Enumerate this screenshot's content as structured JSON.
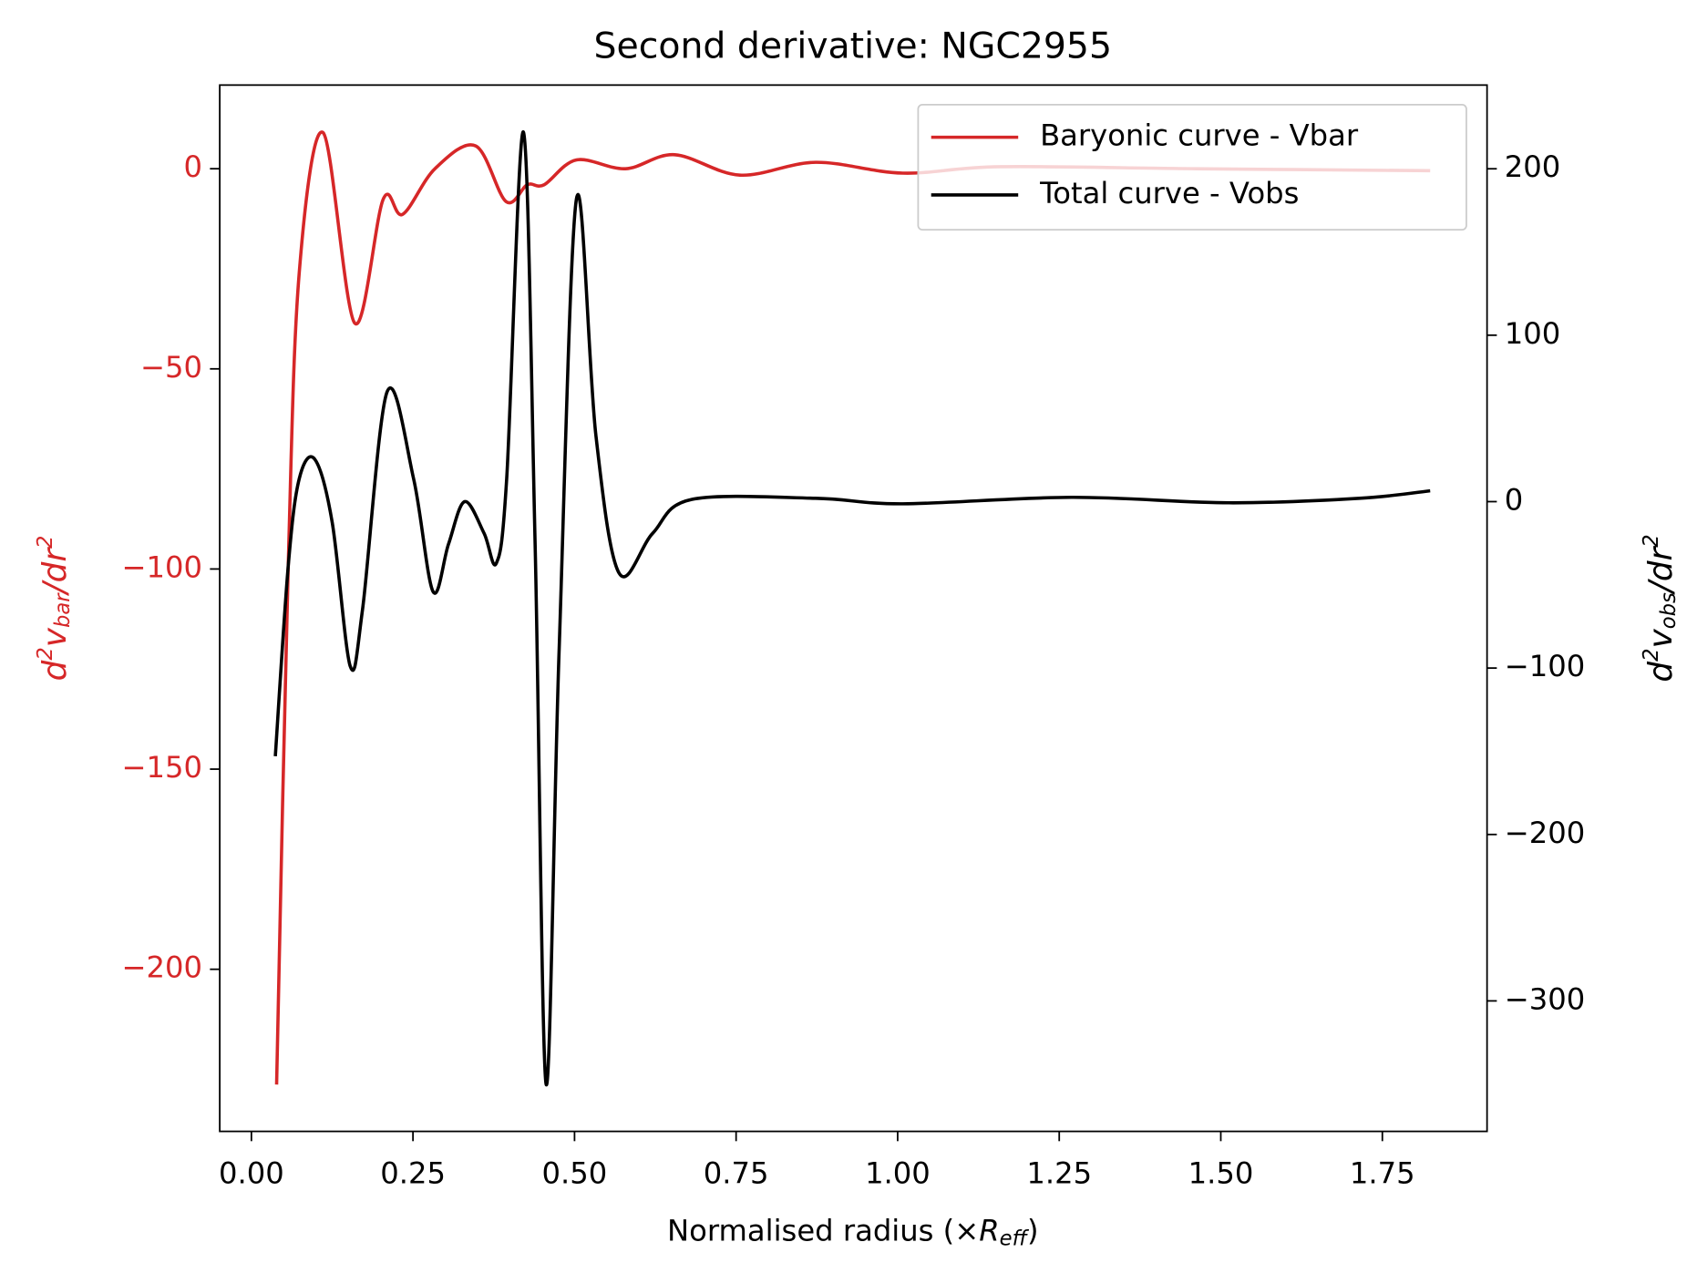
{
  "chart_data": {
    "type": "line",
    "title": "Second derivative: NGC2955",
    "xlabel": [
      "Normalised radius (×",
      "R",
      "eff",
      ")"
    ],
    "ylabel": [
      "d",
      "2",
      "v",
      "bar",
      "/dr",
      "2"
    ],
    "y2label": [
      "d",
      "2",
      "v",
      "obs",
      "/dr",
      "2"
    ],
    "xlim": [
      -0.049,
      1.912
    ],
    "ylim": [
      -240.5,
      20.9
    ],
    "y2lim": [
      -378.4,
      250.3
    ],
    "xticks": [
      {
        "value": 0,
        "label": "0.00"
      },
      {
        "value": 0.25,
        "label": "0.25"
      },
      {
        "value": 0.5,
        "label": "0.50"
      },
      {
        "value": 0.75,
        "label": "0.75"
      },
      {
        "value": 1,
        "label": "1.00"
      },
      {
        "value": 1.25,
        "label": "1.25"
      },
      {
        "value": 1.5,
        "label": "1.50"
      },
      {
        "value": 1.75,
        "label": "1.75"
      }
    ],
    "yticks": [
      {
        "value": -200,
        "label": "−200"
      },
      {
        "value": -150,
        "label": "−150"
      },
      {
        "value": -100,
        "label": "−100"
      },
      {
        "value": -50,
        "label": "−50"
      },
      0
    ],
    "y2ticks": [
      {
        "value": -300,
        "label": "−300"
      },
      {
        "value": -200,
        "label": "−200"
      },
      {
        "value": -100,
        "label": "−100"
      },
      0,
      100,
      200
    ],
    "legend": "upper right",
    "series": [
      {
        "name": "Baryonic curve - Vbar",
        "color": "#d62728",
        "x": [
          0.039,
          0.057,
          0.074,
          0.111,
          0.16,
          0.204,
          0.234,
          0.284,
          0.347,
          0.394,
          0.427,
          0.453,
          0.503,
          0.579,
          0.655,
          0.756,
          0.873,
          1.008,
          1.159,
          1.462,
          1.824
        ],
        "values": [
          -228.8,
          -99,
          -26,
          9,
          -38.6,
          -7.6,
          -11.4,
          0,
          5.7,
          -8.2,
          -4,
          -4,
          2.2,
          0,
          3.5,
          -1.6,
          1.6,
          -1.1,
          0.5,
          0,
          -0.5
        ]
      },
      {
        "name": "Total curve - Vobs",
        "color": "#000000",
        "axis": "y2",
        "x": [
          0.037,
          0.057,
          0.074,
          0.098,
          0.125,
          0.153,
          0.172,
          0.21,
          0.251,
          0.281,
          0.305,
          0.33,
          0.36,
          0.379,
          0.395,
          0.421,
          0.439,
          0.456,
          0.476,
          0.503,
          0.533,
          0.569,
          0.621,
          0.681,
          0.873,
          1.008,
          1.269,
          1.513,
          1.715,
          1.824
        ],
        "values": [
          -153,
          -38.6,
          13.7,
          25.5,
          -12.4,
          -99,
          -64.7,
          66,
          13.7,
          -54,
          -25.5,
          0,
          -19,
          -37,
          13.7,
          222,
          -25.5,
          -350,
          -91,
          182,
          40,
          -43,
          -19,
          1.3,
          2,
          -1.3,
          2.6,
          -0.7,
          2,
          6.5
        ]
      }
    ]
  }
}
